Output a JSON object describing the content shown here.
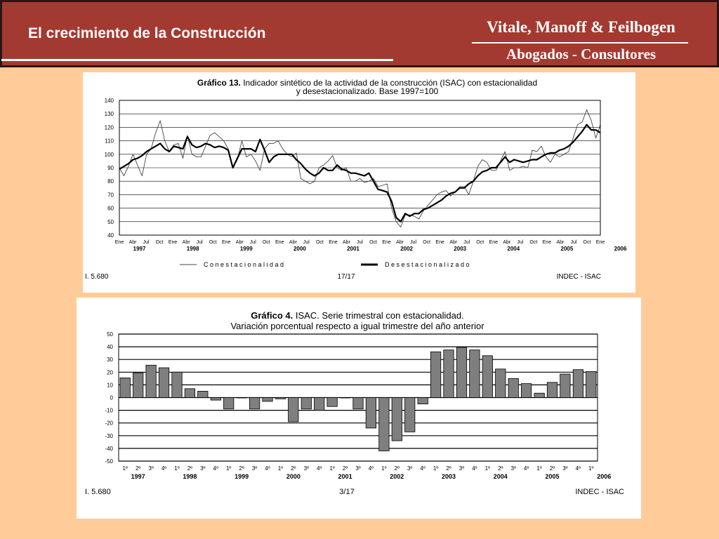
{
  "header": {
    "title": "El crecimiento de la Construcción",
    "firm_name": "Vitale, Manoff & Feilbogen",
    "firm_subtitle": "Abogados - Consultores"
  },
  "colors": {
    "header_bg": "#A33A31",
    "page_bg": "#FFCC99",
    "bar_fill": "#7F7F7F"
  },
  "chart_data": [
    {
      "type": "line",
      "title_bold": "Gráfico 13.",
      "title_rest": " Indicador sintético de la actividad de la construcción (ISAC) con estacionalidad",
      "title_line2": "y desestacionalizado. Base 1997=100",
      "ylim": [
        40,
        140
      ],
      "yticks": [
        40,
        50,
        60,
        70,
        80,
        90,
        100,
        110,
        120,
        130,
        140
      ],
      "grid": true,
      "month_labels": [
        "Ene",
        "Abr",
        "Jul",
        "Oct",
        "Ene",
        "Abr",
        "Jul",
        "Oct",
        "Ene",
        "Abr",
        "Jul",
        "Oct",
        "Ene",
        "Abr",
        "Jul",
        "Oct",
        "Ene",
        "Abr",
        "Jul",
        "Oct",
        "Ene",
        "Abr",
        "Jul",
        "Oct",
        "Ene",
        "Abr",
        "Jul",
        "Oct",
        "Ene",
        "Abr",
        "Jul",
        "Oct",
        "Ene",
        "Abr",
        "Jul",
        "Oct",
        "Ene"
      ],
      "year_labels": [
        "1997",
        "1998",
        "1999",
        "2000",
        "2001",
        "2002",
        "2003",
        "2004",
        "2005",
        "2006"
      ],
      "x_start": "1997-01",
      "x_end": "2006-01",
      "series": [
        {
          "name": "C o n   e s t a c i o n a l i d a d",
          "values": [
            90,
            84,
            91,
            100,
            92,
            84,
            100,
            104,
            116,
            125,
            110,
            102,
            107,
            108,
            97,
            114,
            100,
            98,
            98,
            106,
            114,
            116,
            113,
            110,
            104,
            90,
            96,
            110,
            98,
            100,
            95,
            88,
            104,
            108,
            108,
            110,
            104,
            100,
            98,
            101,
            82,
            80,
            78,
            80,
            90,
            92,
            95,
            99,
            90,
            88,
            90,
            80,
            80,
            82,
            79,
            80,
            82,
            76,
            77,
            78,
            60,
            50,
            46,
            55,
            55,
            54,
            52,
            58,
            62,
            66,
            70,
            72,
            73,
            69,
            72,
            76,
            76,
            70,
            80,
            91,
            96,
            94,
            88,
            88,
            95,
            102,
            88,
            90,
            90,
            91,
            90,
            103,
            102,
            106,
            98,
            94,
            100,
            98,
            100,
            102,
            112,
            122,
            124,
            133,
            125,
            112,
            122
          ]
        },
        {
          "name": "D e s e s t a c i o n a l i z a d o",
          "values": [
            89,
            91,
            93,
            96,
            97,
            99,
            102,
            104,
            106,
            108,
            104,
            102,
            106,
            105,
            104,
            113,
            107,
            105,
            106,
            108,
            107,
            105,
            106,
            105,
            103,
            90,
            97,
            104,
            104,
            104,
            102,
            111,
            103,
            94,
            98,
            100,
            100,
            100,
            100,
            96,
            93,
            89,
            86,
            84,
            86,
            90,
            88,
            88,
            92,
            89,
            88,
            86,
            86,
            85,
            84,
            86,
            80,
            74,
            73,
            72,
            65,
            53,
            50,
            56,
            54,
            56,
            56,
            59,
            60,
            62,
            64,
            66,
            69,
            71,
            72,
            75,
            75,
            78,
            80,
            84,
            87,
            88,
            90,
            90,
            94,
            98,
            94,
            96,
            95,
            94,
            95,
            96,
            96,
            98,
            100,
            101,
            101,
            103,
            104,
            106,
            109,
            113,
            117,
            122,
            118,
            118,
            116
          ]
        }
      ],
      "footer_left": "I. 5.680",
      "footer_center": "17/17",
      "footer_right": "INDEC - ISAC"
    },
    {
      "type": "bar",
      "title_bold": "Gráfico 4.",
      "title_rest": " ISAC. Serie trimestral con estacionalidad.",
      "title_line2": "Variación porcentual respecto a igual trimestre del año anterior",
      "ylim": [
        -50,
        50
      ],
      "yticks": [
        -50,
        -40,
        -30,
        -20,
        -10,
        0,
        10,
        20,
        30,
        40,
        50
      ],
      "grid": true,
      "categories": [
        "1º",
        "2º",
        "3º",
        "4º",
        "1º",
        "2º",
        "3º",
        "4º",
        "1º",
        "2º",
        "3º",
        "4º",
        "1º",
        "2º",
        "3º",
        "4º",
        "1º",
        "2º",
        "3º",
        "4º",
        "1º",
        "2º",
        "3º",
        "4º",
        "1º",
        "2º",
        "3º",
        "4º",
        "1º",
        "2º",
        "3º",
        "4º",
        "1º",
        "2º",
        "3º",
        "4º",
        "1º"
      ],
      "year_labels": [
        "1997",
        "1998",
        "1999",
        "2000",
        "2001",
        "2002",
        "2003",
        "2004",
        "2005",
        "2006"
      ],
      "values": [
        15.5,
        19.5,
        25.5,
        23.5,
        20,
        7,
        5,
        -2,
        -9,
        0,
        -9,
        -3,
        -1,
        -19,
        -9,
        -10,
        -7,
        0,
        -9,
        -24,
        -42,
        -34,
        -27,
        -5,
        36,
        37.5,
        39.5,
        37.5,
        33,
        22.5,
        15,
        11,
        3.5,
        12,
        18.5,
        22,
        20.5
      ],
      "footer_left": "I. 5.680",
      "footer_center": "3/17",
      "footer_right": "INDEC - ISAC"
    }
  ]
}
